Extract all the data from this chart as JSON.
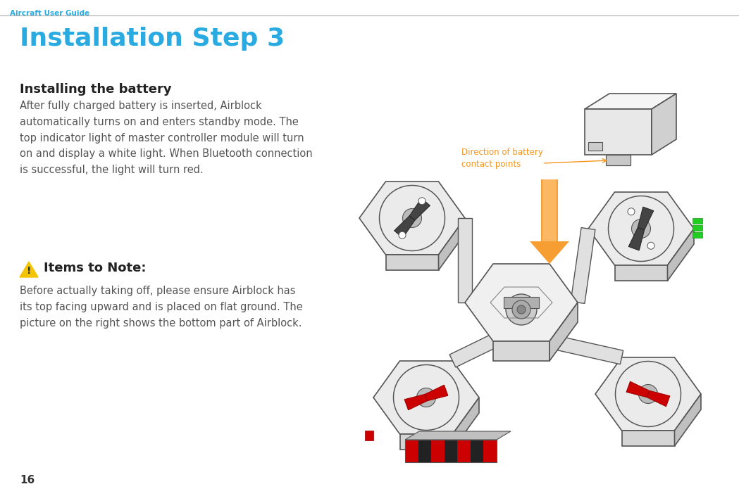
{
  "page_num": "16",
  "header_text": "Aircraft User Guide",
  "header_color": "#29abe2",
  "header_line_color": "#aaaaaa",
  "title": "Installation Step 3",
  "title_color": "#29abe2",
  "title_fontsize": 26,
  "section_title": "Installing the battery",
  "section_title_fontsize": 13,
  "section_title_color": "#222222",
  "body_text": "After fully charged battery is inserted, Airblock\nautomatically turns on and enters standby mode. The\ntop indicator light of master controller module will turn\non and display a white light. When Bluetooth connection\nis successful, the light will turn red.",
  "body_color": "#555555",
  "body_fontsize": 10.5,
  "warning_title": "Items to Note:",
  "warning_title_fontsize": 13,
  "warning_title_color": "#222222",
  "warning_text": "Before actually taking off, please ensure Airblock has\nits top facing upward and is placed on flat ground. The\npicture on the right shows the bottom part of Airblock.",
  "warning_text_color": "#555555",
  "warning_text_fontsize": 10.5,
  "annotation_text": "Direction of battery\ncontact points",
  "annotation_color": "#f7941d",
  "annotation_fontsize": 8.5,
  "bg_color": "#ffffff"
}
